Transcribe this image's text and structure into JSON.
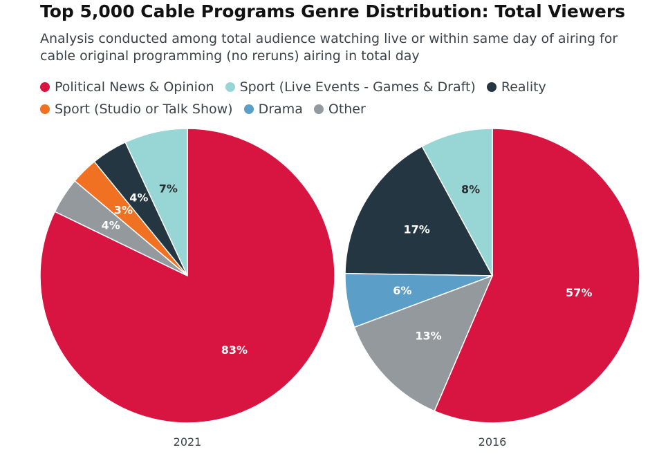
{
  "title": "Top 5,000 Cable Programs Genre Distribution: Total Viewers",
  "subtitle": "Analysis conducted among total audience watching live or within same day of airing for cable original programming (no reruns) airing in total day",
  "legend": [
    {
      "label": "Political News & Opinion",
      "color": "#d81440"
    },
    {
      "label": "Sport (Live Events - Games & Draft)",
      "color": "#97d6d4"
    },
    {
      "label": "Reality",
      "color": "#233641"
    },
    {
      "label": "Sport (Studio or Talk Show)",
      "color": "#f07121"
    },
    {
      "label": "Drama",
      "color": "#5b9fc8"
    },
    {
      "label": "Other",
      "color": "#93999d"
    }
  ],
  "chart_data": [
    {
      "type": "pie",
      "label": "2021",
      "slices": [
        {
          "category": "Political News & Opinion",
          "value": 83,
          "label": "83%",
          "color": "#d81440",
          "label_color": "#ffffff"
        },
        {
          "category": "Sport (Live Events - Games & Draft)",
          "value": 7,
          "label": "7%",
          "color": "#97d6d4",
          "label_color": "#2b2f33"
        },
        {
          "category": "Reality",
          "value": 4,
          "label": "4%",
          "color": "#233641",
          "label_color": "#ffffff"
        },
        {
          "category": "Sport (Studio or Talk Show)",
          "value": 3,
          "label": "3%",
          "color": "#f07121",
          "label_color": "#ffffff"
        },
        {
          "category": "Other",
          "value": 4,
          "label": "4%",
          "color": "#93999d",
          "label_color": "#ffffff"
        }
      ]
    },
    {
      "type": "pie",
      "label": "2016",
      "slices": [
        {
          "category": "Political News & Opinion",
          "value": 57,
          "label": "57%",
          "color": "#d81440",
          "label_color": "#ffffff"
        },
        {
          "category": "Sport (Live Events - Games & Draft)",
          "value": 8,
          "label": "8%",
          "color": "#97d6d4",
          "label_color": "#2b2f33"
        },
        {
          "category": "Reality",
          "value": 17,
          "label": "17%",
          "color": "#233641",
          "label_color": "#ffffff"
        },
        {
          "category": "Drama",
          "value": 6,
          "label": "6%",
          "color": "#5b9fc8",
          "label_color": "#ffffff"
        },
        {
          "category": "Other",
          "value": 13,
          "label": "13%",
          "color": "#93999d",
          "label_color": "#ffffff"
        }
      ]
    }
  ]
}
